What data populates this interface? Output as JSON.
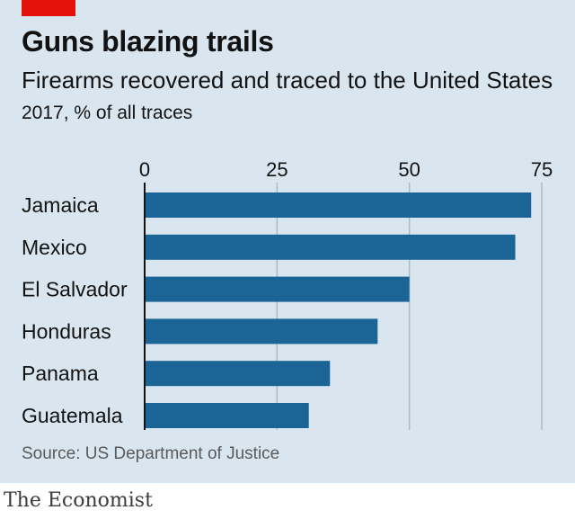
{
  "header": {
    "title": "Guns blazing trails",
    "subtitle": "Firearms recovered and traced to the United States",
    "units": "2017, % of all traces"
  },
  "footer": {
    "source": "Source: US Department of Justice",
    "brand": "The Economist"
  },
  "colors": {
    "background": "#d9e6ef",
    "bar": "#1a6496",
    "accent": "#e3120b",
    "grid": "#aabac6"
  },
  "chart_data": {
    "type": "bar",
    "orientation": "horizontal",
    "title": "Guns blazing trails",
    "subtitle": "Firearms recovered and traced to the United States",
    "ylabel": "",
    "xlabel": "",
    "categories": [
      "Jamaica",
      "Mexico",
      "El Salvador",
      "Honduras",
      "Panama",
      "Guatemala"
    ],
    "values": [
      73,
      70,
      50,
      44,
      35,
      31
    ],
    "xlim": [
      0,
      75
    ],
    "xticks": [
      0,
      25,
      50,
      75
    ],
    "grid": true,
    "legend": "none"
  }
}
